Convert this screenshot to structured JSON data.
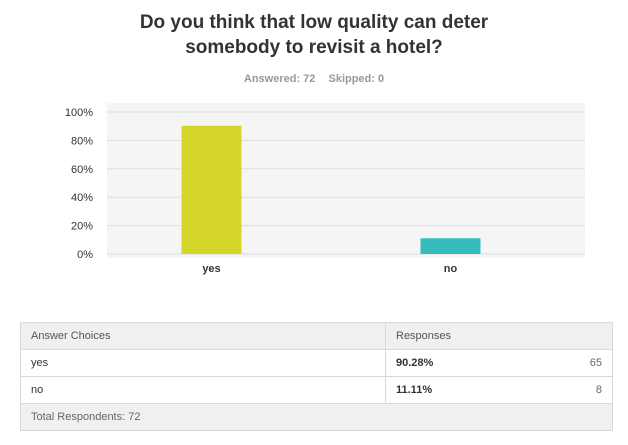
{
  "question": {
    "title_line1": "Do you think that low quality can deter",
    "title_line2": "somebody to revisit a hotel?"
  },
  "summary": {
    "answered": "Answered: 72",
    "skipped": "Skipped: 0"
  },
  "colors": {
    "yes": "#d4d629",
    "no": "#35bdbd",
    "plot_bg": "#f5f5f5"
  },
  "chart_data": {
    "type": "bar",
    "categories": [
      "yes",
      "no"
    ],
    "values": [
      90.28,
      11.11
    ],
    "ylim": [
      0,
      100
    ],
    "yticks": [
      "0%",
      "20%",
      "40%",
      "60%",
      "80%",
      "100%"
    ],
    "ytick_values": [
      0,
      20,
      40,
      60,
      80,
      100
    ],
    "grid": true,
    "title": "",
    "xlabel": "",
    "ylabel": ""
  },
  "table": {
    "headers": [
      "Answer Choices",
      "Responses"
    ],
    "rows": [
      {
        "choice": "yes",
        "percent": "90.28%",
        "count": "65"
      },
      {
        "choice": "no",
        "percent": "11.11%",
        "count": "8"
      }
    ],
    "footer": "Total Respondents: 72"
  }
}
